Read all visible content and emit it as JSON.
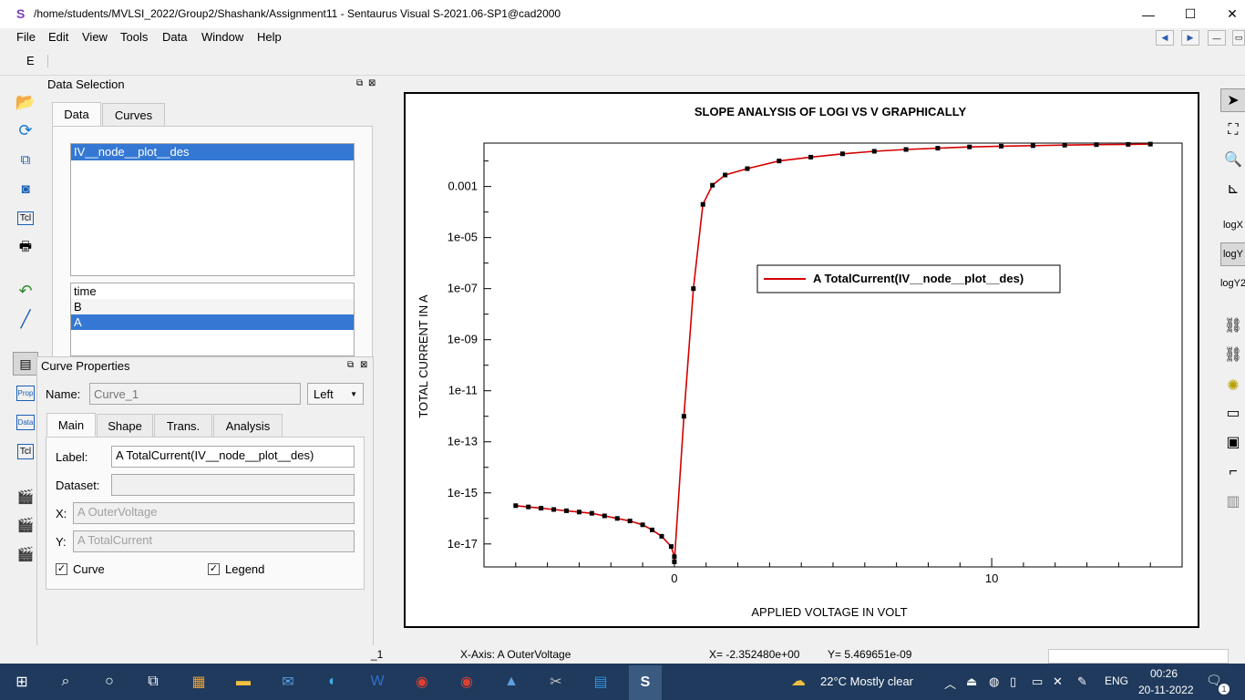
{
  "window": {
    "app_icon": "S",
    "title": "/home/students/MVLSI_2022/Group2/Shashank/Assignment11 - Sentaurus Visual S-2021.06-SP1@cad2000",
    "minimize": "—",
    "maximize": "☐",
    "close": "✕"
  },
  "menu": [
    "File",
    "Edit",
    "View",
    "Tools",
    "Data",
    "Window",
    "Help"
  ],
  "toolbar": {
    "label": "E"
  },
  "data_selection": {
    "title": "Data Selection",
    "tabs": [
      "Data",
      "Curves"
    ],
    "datasets": [
      "IV__node__plot__des"
    ],
    "variables": [
      "time",
      "B",
      "A"
    ]
  },
  "curve_properties": {
    "title": "Curve Properties",
    "name_label": "Name:",
    "name_placeholder": "Curve_1",
    "axis_select": "Left",
    "tabs": [
      "Main",
      "Shape",
      "Trans.",
      "Analysis"
    ],
    "label_label": "Label:",
    "label_value": "A TotalCurrent(IV__node__plot__des)",
    "dataset_label": "Dataset:",
    "x_label": "X:",
    "x_value": "A OuterVoltage",
    "y_label": "Y:",
    "y_value": "A TotalCurrent",
    "curve_check": "Curve",
    "legend_check": "Legend"
  },
  "left_tools": [
    "open-folder-icon",
    "reload-icon",
    "arrange-icon",
    "camera-icon",
    "tcl-icon",
    "print-icon",
    "undo-icon",
    "pen-icon",
    "properties-icon",
    "prop-icon",
    "data-icon",
    "tcl-console-icon",
    "record-icon",
    "clapper-icon",
    "clapper2-icon"
  ],
  "left_tool_labels": {
    "tcl": "Tcl",
    "prop": "Prop",
    "data": "Data",
    "tcl2": "Tcl"
  },
  "right_tool_labels": {
    "logx": "logX",
    "logy": "logY",
    "logy2": "logY2"
  },
  "chart_data": {
    "type": "line",
    "title": "SLOPE ANALYSIS OF LOGI VS V GRAPHICALLY",
    "xlabel": "APPLIED VOLTAGE IN VOLT",
    "ylabel": "TOTAL CURRENT IN A",
    "xlim": [
      -6,
      16
    ],
    "ylim_log10": [
      -17.9,
      -1.3
    ],
    "y_scale": "log",
    "xticks": [
      0,
      10
    ],
    "ytick_labels": [
      "0.001",
      "1e-05",
      "1e-07",
      "1e-09",
      "1e-11",
      "1e-13",
      "1e-15",
      "1e-17"
    ],
    "ytick_exponents": [
      -3,
      -5,
      -7,
      -9,
      -11,
      -13,
      -15,
      -17
    ],
    "legend": "A TotalCurrent(IV__node__plot__des)",
    "legend_position": "center-right",
    "color": "#d40000",
    "series": [
      {
        "name": "A TotalCurrent(IV__node__plot__des)",
        "x": [
          -5.0,
          -4.6,
          -4.2,
          -3.8,
          -3.4,
          -3.0,
          -2.6,
          -2.2,
          -1.8,
          -1.4,
          -1.0,
          -0.7,
          -0.4,
          -0.1,
          0.0,
          0.0,
          0.3,
          0.6,
          0.9,
          1.2,
          1.6,
          2.3,
          3.3,
          4.3,
          5.3,
          6.3,
          7.3,
          8.3,
          9.3,
          10.3,
          11.3,
          12.3,
          13.3,
          14.3,
          15.0
        ],
        "y_log10": [
          -15.5,
          -15.55,
          -15.6,
          -15.65,
          -15.7,
          -15.75,
          -15.8,
          -15.9,
          -16.0,
          -16.1,
          -16.25,
          -16.45,
          -16.7,
          -17.1,
          -17.5,
          -17.7,
          -12.0,
          -7.0,
          -3.7,
          -2.95,
          -2.55,
          -2.3,
          -2.0,
          -1.85,
          -1.72,
          -1.62,
          -1.55,
          -1.5,
          -1.45,
          -1.42,
          -1.4,
          -1.38,
          -1.36,
          -1.35,
          -1.34
        ]
      }
    ]
  },
  "status": {
    "left": "_1",
    "xaxis": "X-Axis: A OuterVoltage",
    "xcoord": "X= -2.352480e+00",
    "ycoord": "Y= 5.469651e-09"
  },
  "taskbar": {
    "weather": "22°C  Mostly clear",
    "lang": "ENG",
    "time": "00:26",
    "date": "20-11-2022",
    "notif": "1"
  }
}
